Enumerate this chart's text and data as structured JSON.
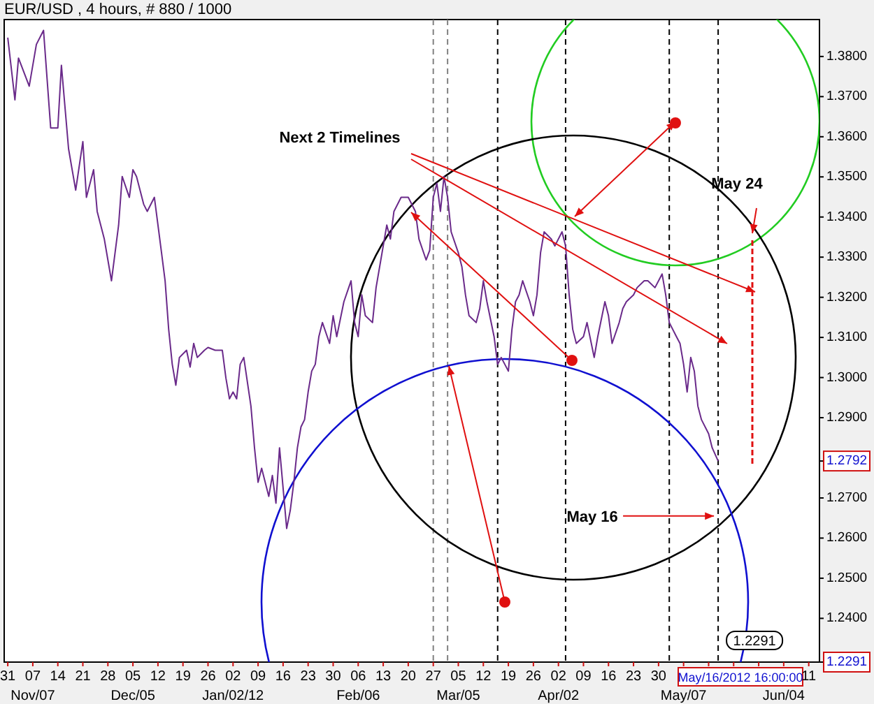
{
  "chart_data": {
    "type": "line",
    "title": "EUR/USD , 4 hours, # 880 / 1000",
    "x": [
      "2011-10-31",
      "2011-11-02",
      "2011-11-03",
      "2011-11-06",
      "2011-11-08",
      "2011-11-10",
      "2011-11-12",
      "2011-11-14",
      "2011-11-15",
      "2011-11-17",
      "2011-11-18",
      "2011-11-19",
      "2011-11-21",
      "2011-11-22",
      "2011-11-24",
      "2011-11-25",
      "2011-11-27",
      "2011-11-28",
      "2011-11-29",
      "2011-12-01",
      "2011-12-02",
      "2011-12-04",
      "2011-12-05",
      "2011-12-06",
      "2011-12-08",
      "2011-12-09",
      "2011-12-11",
      "2011-12-12",
      "2011-12-13",
      "2011-12-14",
      "2011-12-15",
      "2011-12-16",
      "2011-12-17",
      "2011-12-18",
      "2011-12-20",
      "2011-12-21",
      "2011-12-22",
      "2011-12-23",
      "2011-12-25",
      "2011-12-26",
      "2011-12-28",
      "2011-12-30",
      "2011-12-31",
      "2012-01-01",
      "2012-01-02",
      "2012-01-03",
      "2012-01-04",
      "2012-01-05",
      "2012-01-07",
      "2012-01-08",
      "2012-01-09",
      "2012-01-10",
      "2012-01-12",
      "2012-01-13",
      "2012-01-14",
      "2012-01-15",
      "2012-01-17",
      "2012-01-18",
      "2012-01-19",
      "2012-01-20",
      "2012-01-21",
      "2012-01-22",
      "2012-01-23",
      "2012-01-24",
      "2012-01-25",
      "2012-01-26",
      "2012-01-27",
      "2012-01-29",
      "2012-01-30",
      "2012-01-31",
      "2012-02-02",
      "2012-02-04",
      "2012-02-05",
      "2012-02-06",
      "2012-02-07",
      "2012-02-08",
      "2012-02-10",
      "2012-02-11",
      "2012-02-12",
      "2012-02-14",
      "2012-02-15",
      "2012-02-16",
      "2012-02-18",
      "2012-02-20",
      "2012-02-22",
      "2012-02-23",
      "2012-02-25",
      "2012-02-26",
      "2012-02-27",
      "2012-02-28",
      "2012-02-29",
      "2012-03-01",
      "2012-03-02",
      "2012-03-03",
      "2012-03-05",
      "2012-03-06",
      "2012-03-07",
      "2012-03-08",
      "2012-03-10",
      "2012-03-11",
      "2012-03-12",
      "2012-03-13",
      "2012-03-15",
      "2012-03-16",
      "2012-03-17",
      "2012-03-19",
      "2012-03-20",
      "2012-03-21",
      "2012-03-22",
      "2012-03-23",
      "2012-03-25",
      "2012-03-26",
      "2012-03-27",
      "2012-03-28",
      "2012-03-29",
      "2012-03-31",
      "2012-04-01",
      "2012-04-03",
      "2012-04-04",
      "2012-04-05",
      "2012-04-06",
      "2012-04-07",
      "2012-04-09",
      "2012-04-10",
      "2012-04-12",
      "2012-04-13",
      "2012-04-15",
      "2012-04-16",
      "2012-04-17",
      "2012-04-19",
      "2012-04-20",
      "2012-04-21",
      "2012-04-23",
      "2012-04-24",
      "2012-04-26",
      "2012-04-27",
      "2012-04-29",
      "2012-05-01",
      "2012-05-02",
      "2012-05-03",
      "2012-05-05",
      "2012-05-06",
      "2012-05-07",
      "2012-05-08",
      "2012-05-09",
      "2012-05-10",
      "2012-05-11",
      "2012-05-12",
      "2012-05-14",
      "2012-05-15",
      "2012-05-16T16:00"
    ],
    "series": [
      {
        "color": "#6a2a8a",
        "values": [
          1.3847,
          1.3692,
          1.3796,
          1.3726,
          1.383,
          1.3865,
          1.3622,
          1.3622,
          1.3778,
          1.357,
          1.3518,
          1.3467,
          1.3588,
          1.3449,
          1.3518,
          1.3414,
          1.3345,
          1.3293,
          1.3241,
          1.338,
          1.3501,
          1.3449,
          1.3518,
          1.3501,
          1.3432,
          1.3414,
          1.3449,
          1.338,
          1.3311,
          1.3241,
          1.312,
          1.3033,
          1.2981,
          1.305,
          1.3068,
          1.3026,
          1.3085,
          1.305,
          1.3068,
          1.3075,
          1.3068,
          1.3068,
          1.2999,
          1.2947,
          1.2964,
          1.2947,
          1.3033,
          1.305,
          1.2929,
          1.2825,
          1.2739,
          1.2774,
          1.2704,
          1.2756,
          1.2687,
          1.2825,
          1.2624,
          1.2669,
          1.2739,
          1.2825,
          1.2877,
          1.2895,
          1.2964,
          1.3016,
          1.3033,
          1.3102,
          1.3137,
          1.3085,
          1.3154,
          1.3102,
          1.3189,
          1.3241,
          1.3137,
          1.3102,
          1.3206,
          1.3154,
          1.3137,
          1.3224,
          1.3276,
          1.338,
          1.3345,
          1.3414,
          1.3449,
          1.3449,
          1.3414,
          1.3345,
          1.3293,
          1.3317,
          1.3449,
          1.3484,
          1.3414,
          1.3501,
          1.3449,
          1.3363,
          1.3311,
          1.3276,
          1.3206,
          1.3154,
          1.3137,
          1.3172,
          1.3241,
          1.3189,
          1.3102,
          1.3033,
          1.305,
          1.3016,
          1.312,
          1.3189,
          1.3206,
          1.3241,
          1.3189,
          1.3154,
          1.3206,
          1.3311,
          1.3363,
          1.3345,
          1.3328,
          1.3363,
          1.3328,
          1.3206,
          1.312,
          1.3085,
          1.3102,
          1.3137,
          1.305,
          1.3102,
          1.3189,
          1.3154,
          1.3085,
          1.3137,
          1.3172,
          1.3189,
          1.3206,
          1.3224,
          1.3241,
          1.3241,
          1.3224,
          1.3258,
          1.3206,
          1.3137,
          1.3102,
          1.3085,
          1.3033,
          1.2964,
          1.305,
          1.3016,
          1.2929,
          1.2895,
          1.286,
          1.2825,
          1.2792
        ]
      }
    ],
    "xlim": [
      "2011-10-30",
      "2012-06-14"
    ],
    "ylim": [
      1.2291,
      1.3892
    ],
    "xticks": [
      {
        "value": "2011-10-31",
        "label": "31"
      },
      {
        "value": "2011-11-07",
        "label": "07"
      },
      {
        "value": "2011-11-14",
        "label": "14"
      },
      {
        "value": "2011-11-21",
        "label": "21"
      },
      {
        "value": "2011-11-28",
        "label": "28"
      },
      {
        "value": "2011-12-05",
        "label": "05"
      },
      {
        "value": "2011-12-12",
        "label": "12"
      },
      {
        "value": "2011-12-19",
        "label": "19"
      },
      {
        "value": "2011-12-26",
        "label": "26"
      },
      {
        "value": "2012-01-02",
        "label": "02"
      },
      {
        "value": "2012-01-09",
        "label": "09"
      },
      {
        "value": "2012-01-16",
        "label": "16"
      },
      {
        "value": "2012-01-23",
        "label": "23"
      },
      {
        "value": "2012-01-30",
        "label": "30"
      },
      {
        "value": "2012-02-06",
        "label": "06"
      },
      {
        "value": "2012-02-13",
        "label": "13"
      },
      {
        "value": "2012-02-20",
        "label": "20"
      },
      {
        "value": "2012-02-27",
        "label": "27"
      },
      {
        "value": "2012-03-05",
        "label": "05"
      },
      {
        "value": "2012-03-12",
        "label": "12"
      },
      {
        "value": "2012-03-19",
        "label": "19"
      },
      {
        "value": "2012-03-26",
        "label": "26"
      },
      {
        "value": "2012-04-02",
        "label": "02"
      },
      {
        "value": "2012-04-09",
        "label": "09"
      },
      {
        "value": "2012-04-16",
        "label": "16"
      },
      {
        "value": "2012-04-23",
        "label": "23"
      },
      {
        "value": "2012-04-30",
        "label": "30"
      },
      {
        "value": "2012-05-07",
        "label": null
      },
      {
        "value": "2012-05-14",
        "label": null
      },
      {
        "value": "2012-05-21",
        "label": null
      },
      {
        "value": "2012-05-28",
        "label": null
      },
      {
        "value": "2012-06-04",
        "label": null
      },
      {
        "value": "2012-06-11",
        "label": "11"
      }
    ],
    "yticks": [
      {
        "value": 1.38,
        "label": "1.3800"
      },
      {
        "value": 1.37,
        "label": "1.3700"
      },
      {
        "value": 1.36,
        "label": "1.3600"
      },
      {
        "value": 1.35,
        "label": "1.3500"
      },
      {
        "value": 1.34,
        "label": "1.3400"
      },
      {
        "value": 1.33,
        "label": "1.3300"
      },
      {
        "value": 1.32,
        "label": "1.3200"
      },
      {
        "value": 1.31,
        "label": "1.3100"
      },
      {
        "value": 1.3,
        "label": "1.3000"
      },
      {
        "value": 1.29,
        "label": "1.2900"
      },
      {
        "value": 1.2792,
        "label": "1.2792"
      },
      {
        "value": 1.27,
        "label": "1.2700"
      },
      {
        "value": 1.26,
        "label": "1.2600"
      },
      {
        "value": 1.25,
        "label": "1.2500"
      },
      {
        "value": 1.24,
        "label": "1.2400"
      },
      {
        "value": 1.2291,
        "label": "1.2291"
      }
    ],
    "ref_lines": [
      {
        "axis": "x",
        "value": "2012-02-27",
        "color": "#808080",
        "line_style": "dashed"
      },
      {
        "axis": "x",
        "value": "2012-03-02",
        "color": "#808080",
        "line_style": "dashed"
      },
      {
        "axis": "x",
        "value": "2012-03-16",
        "color": "#000000",
        "line_style": "dashed"
      },
      {
        "axis": "x",
        "value": "2012-04-04",
        "color": "#000000",
        "line_style": "dashed"
      },
      {
        "axis": "x",
        "value": "2012-05-03",
        "color": "#000000",
        "line_style": "dashed"
      },
      {
        "axis": "x",
        "value": "2012-05-16T16:00",
        "color": "#000000",
        "line_style": "dashed"
      }
    ],
    "annotations": [
      "Next 2 Timelines",
      "May 24",
      {
        "text": "May 16",
        "x": "2012-05-16T16:00",
        "y": 1.2655
      },
      "May/16/2012 16:00:00",
      {
        "text": "1.2291",
        "x": "2012-05-16T16:00",
        "y": 1.2291
      },
      "Nov/07",
      "Dec/05",
      "Jan/02/12",
      "Feb/06",
      "Mar/05",
      "Apr/02",
      "May/07",
      "Jun/04"
    ]
  }
}
